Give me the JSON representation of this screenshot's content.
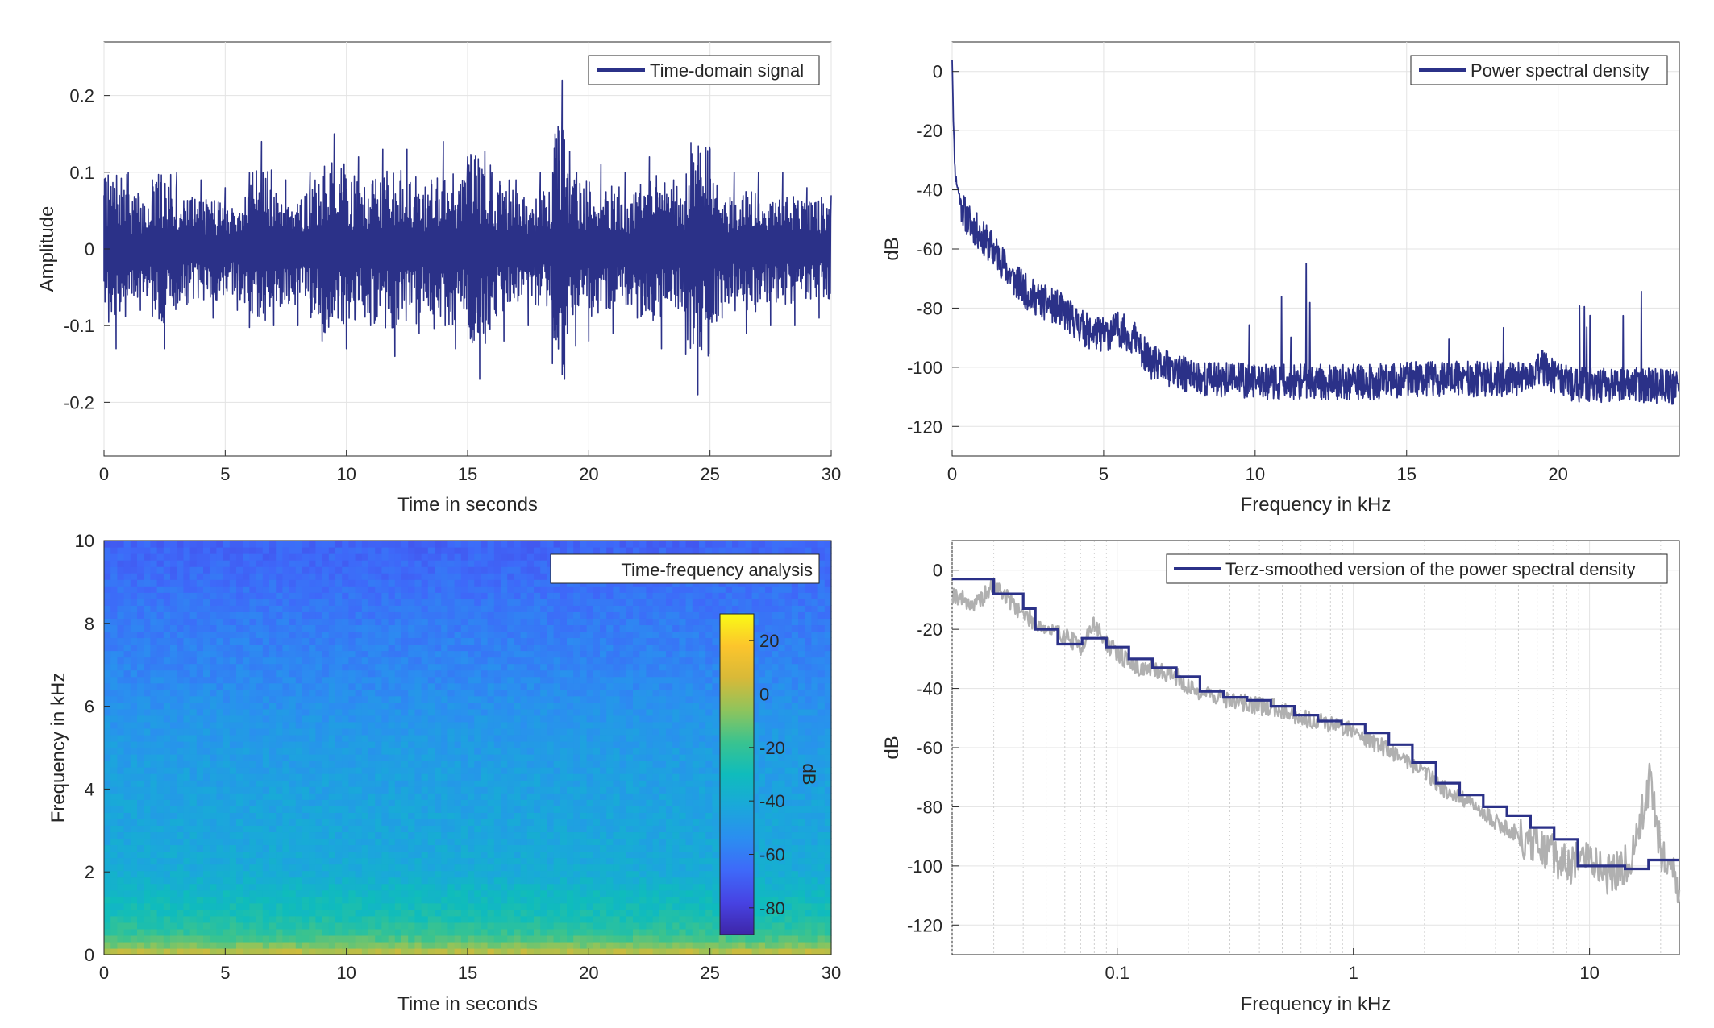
{
  "colors": {
    "line": "#2b3188",
    "gray_line": "#b0b0b0",
    "axis": "#262626",
    "grid": "#e3e3e3",
    "minor_grid": "#d0d0d0"
  },
  "chart_data": [
    {
      "type": "line",
      "legend": "Time-domain signal",
      "legend_position": "top-right",
      "xlabel": "Time in seconds",
      "ylabel": "Amplitude",
      "xlim": [
        0,
        30
      ],
      "ylim": [
        -0.27,
        0.27
      ],
      "xticks": [
        0,
        5,
        10,
        15,
        20,
        25,
        30
      ],
      "xtick_labels": [
        "0",
        "5",
        "10",
        "15",
        "20",
        "25",
        "30"
      ],
      "yticks": [
        -0.2,
        -0.1,
        0,
        0.1,
        0.2
      ],
      "ytick_labels": [
        "-0.2",
        "-0.1",
        "0",
        "0.1",
        "0.2"
      ],
      "grid": true,
      "series": [
        {
          "x": [
            0,
            0.5,
            1,
            1.5,
            2,
            2.5,
            3,
            3.5,
            4,
            4.5,
            5,
            5.5,
            6,
            6.5,
            7,
            7.5,
            8,
            8.5,
            9,
            9.5,
            10,
            10.5,
            11,
            11.5,
            12,
            12.5,
            13,
            13.5,
            14,
            14.5,
            15,
            15.5,
            16,
            16.5,
            17,
            17.5,
            18,
            18.5,
            18.9,
            19,
            19.5,
            20,
            20.5,
            21,
            21.5,
            22,
            22.5,
            23,
            23.5,
            24,
            24.5,
            25,
            25.5,
            26,
            26.5,
            27,
            27.5,
            28,
            28.5,
            29,
            29.5,
            30
          ],
          "y": [
            0.07,
            -0.13,
            0.1,
            -0.08,
            0.09,
            -0.13,
            0.1,
            -0.07,
            0.09,
            -0.09,
            0.08,
            -0.08,
            0.1,
            0.14,
            -0.1,
            0.09,
            -0.1,
            0.1,
            -0.12,
            0.15,
            -0.13,
            0.12,
            -0.1,
            0.13,
            -0.14,
            0.13,
            -0.11,
            0.09,
            0.14,
            -0.13,
            0.12,
            -0.17,
            0.1,
            -0.12,
            0.09,
            -0.1,
            0.1,
            -0.1,
            0.22,
            -0.17,
            0.1,
            -0.12,
            0.11,
            -0.11,
            0.1,
            -0.09,
            0.12,
            -0.13,
            0.09,
            -0.11,
            -0.19,
            0.13,
            -0.09,
            0.1,
            -0.11,
            0.1,
            -0.1,
            0.1,
            -0.1,
            0.08,
            -0.09,
            0.07
          ]
        }
      ]
    },
    {
      "type": "line",
      "legend": "Power spectral density",
      "legend_position": "top-right",
      "xlabel": "Frequency in kHz",
      "ylabel": "dB",
      "xlim": [
        0,
        24
      ],
      "ylim": [
        -130,
        10
      ],
      "xticks": [
        0,
        5,
        10,
        15,
        20
      ],
      "xtick_labels": [
        "0",
        "5",
        "10",
        "15",
        "20"
      ],
      "yticks": [
        0,
        -20,
        -40,
        -60,
        -80,
        -100,
        -120
      ],
      "ytick_labels": [
        "0",
        "-20",
        "-40",
        "-60",
        "-80",
        "-100",
        "-120"
      ],
      "grid": true,
      "series": [
        {
          "x": [
            0,
            0.05,
            0.1,
            0.2,
            0.3,
            0.5,
            1,
            1.5,
            2,
            2.5,
            3,
            3.5,
            4,
            4.5,
            5,
            5.5,
            6,
            6.5,
            7,
            7.5,
            8,
            8.5,
            9,
            10,
            11,
            12,
            13,
            14,
            15,
            16,
            17,
            18,
            19,
            19.5,
            20,
            20.5,
            21,
            22,
            23,
            24
          ],
          "y": [
            5,
            -20,
            -35,
            -40,
            -45,
            -50,
            -56,
            -62,
            -70,
            -75,
            -78,
            -80,
            -84,
            -88,
            -89,
            -87,
            -90,
            -98,
            -100,
            -102,
            -103,
            -104,
            -104,
            -105,
            -105,
            -105,
            -105,
            -105,
            -104,
            -104,
            -104,
            -104,
            -104,
            -100,
            -104,
            -106,
            -106,
            -106,
            -106,
            -107
          ]
        }
      ]
    },
    {
      "type": "heatmap",
      "legend": "Time-frequency analysis",
      "legend_position": "top-right",
      "xlabel": "Time in seconds",
      "ylabel": "Frequency in kHz",
      "xlim": [
        0,
        30
      ],
      "ylim": [
        0,
        10
      ],
      "xticks": [
        0,
        5,
        10,
        15,
        20,
        25,
        30
      ],
      "xtick_labels": [
        "0",
        "5",
        "10",
        "15",
        "20",
        "25",
        "30"
      ],
      "yticks": [
        0,
        2,
        4,
        6,
        8,
        10
      ],
      "ytick_labels": [
        "0",
        "2",
        "4",
        "6",
        "8",
        "10"
      ],
      "colorbar": {
        "label": "dB",
        "range": [
          -90,
          30
        ],
        "ticks": [
          20,
          0,
          -20,
          -40,
          -60,
          -80
        ],
        "tick_labels": [
          "20",
          "0",
          "-20",
          "-40",
          "-60",
          "-80"
        ]
      },
      "freq_profile_khz": [
        0,
        0.25,
        0.5,
        1,
        1.5,
        2,
        3,
        4,
        5,
        6,
        7,
        8,
        9,
        10
      ],
      "freq_profile_db": [
        5,
        -10,
        -20,
        -28,
        -33,
        -40,
        -43,
        -45,
        -48,
        -52,
        -57,
        -60,
        -64,
        -68
      ]
    },
    {
      "type": "line",
      "legend": "Terz-smoothed version of the power spectral density",
      "legend_position": "top-right",
      "xlabel": "Frequency in kHz",
      "ylabel": "dB",
      "xscale": "log",
      "xlim": [
        0.02,
        24
      ],
      "ylim": [
        -130,
        10
      ],
      "xticks": [
        0.1,
        1,
        10
      ],
      "xtick_labels": [
        "0.1",
        "1",
        "10"
      ],
      "yticks": [
        0,
        -20,
        -40,
        -60,
        -80,
        -100,
        -120
      ],
      "ytick_labels": [
        "0",
        "-20",
        "-40",
        "-60",
        "-80",
        "-100",
        "-120"
      ],
      "grid": true,
      "series": [
        {
          "x": [
            0.02,
            0.025,
            0.03,
            0.035,
            0.04,
            0.05,
            0.06,
            0.07,
            0.08,
            0.09,
            0.1,
            0.12,
            0.15,
            0.18,
            0.2,
            0.25,
            0.3,
            0.4,
            0.5,
            0.6,
            0.8,
            1,
            1.2,
            1.5,
            2,
            2.5,
            3,
            4,
            5,
            6,
            7,
            8,
            10,
            12,
            15,
            18,
            20,
            24
          ],
          "y": [
            -8,
            -12,
            -5,
            -10,
            -15,
            -20,
            -22,
            -26,
            -18,
            -25,
            -28,
            -33,
            -34,
            -36,
            -40,
            -42,
            -44,
            -46,
            -47,
            -50,
            -52,
            -54,
            -58,
            -62,
            -68,
            -75,
            -78,
            -85,
            -90,
            -94,
            -96,
            -100,
            -97,
            -103,
            -98,
            -70,
            -95,
            -108
          ]
        },
        {
          "steps_x": [
            0.02,
            0.03,
            0.04,
            0.045,
            0.056,
            0.071,
            0.09,
            0.112,
            0.141,
            0.178,
            0.224,
            0.282,
            0.355,
            0.447,
            0.562,
            0.708,
            0.891,
            1.122,
            1.413,
            1.778,
            2.239,
            2.818,
            3.548,
            4.467,
            5.623,
            7.079,
            8.913,
            11.22,
            14.13,
            17.78,
            24
          ],
          "steps_y": [
            -3,
            -8,
            -13,
            -20,
            -25,
            -23,
            -26,
            -30,
            -33,
            -36,
            -41,
            -43,
            -44,
            -46,
            -49,
            -51,
            -52,
            -55,
            -59,
            -65,
            -72,
            -76,
            -80,
            -83,
            -87,
            -91,
            -100,
            -100,
            -101,
            -98,
            -95
          ]
        }
      ]
    }
  ]
}
